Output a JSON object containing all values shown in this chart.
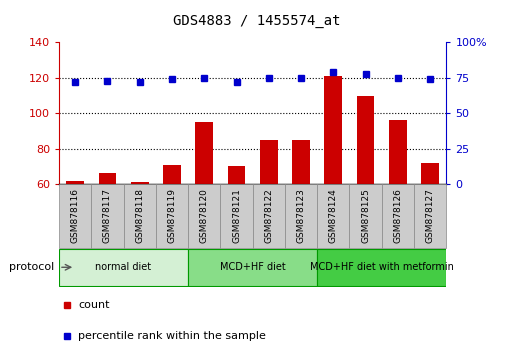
{
  "title": "GDS4883 / 1455574_at",
  "samples": [
    "GSM878116",
    "GSM878117",
    "GSM878118",
    "GSM878119",
    "GSM878120",
    "GSM878121",
    "GSM878122",
    "GSM878123",
    "GSM878124",
    "GSM878125",
    "GSM878126",
    "GSM878127"
  ],
  "counts": [
    62,
    66,
    61,
    71,
    95,
    70,
    85,
    85,
    121,
    110,
    96,
    72
  ],
  "percentile": [
    72,
    73,
    72,
    74,
    75,
    72,
    75,
    75,
    79,
    78,
    75,
    74
  ],
  "bar_color": "#cc0000",
  "dot_color": "#0000cc",
  "ylim_left": [
    60,
    140
  ],
  "ylim_right": [
    0,
    100
  ],
  "yticks_left": [
    60,
    80,
    100,
    120,
    140
  ],
  "yticks_right": [
    0,
    25,
    50,
    75,
    100
  ],
  "dotted_yticks": [
    80,
    100,
    120
  ],
  "groups": [
    {
      "label": "normal diet",
      "start": 0,
      "end": 4,
      "color": "#d4f0d4"
    },
    {
      "label": "MCD+HF diet",
      "start": 4,
      "end": 8,
      "color": "#88dd88"
    },
    {
      "label": "MCD+HF diet with metformin",
      "start": 8,
      "end": 12,
      "color": "#44cc44"
    }
  ],
  "protocol_label": "protocol",
  "legend_count_label": "count",
  "legend_pct_label": "percentile rank within the sample",
  "background_color": "#ffffff",
  "plot_bg_color": "#ffffff",
  "ylabel_left_color": "#cc0000",
  "ylabel_right_color": "#0000cc",
  "sample_box_color": "#cccccc",
  "sample_box_edge": "#888888"
}
